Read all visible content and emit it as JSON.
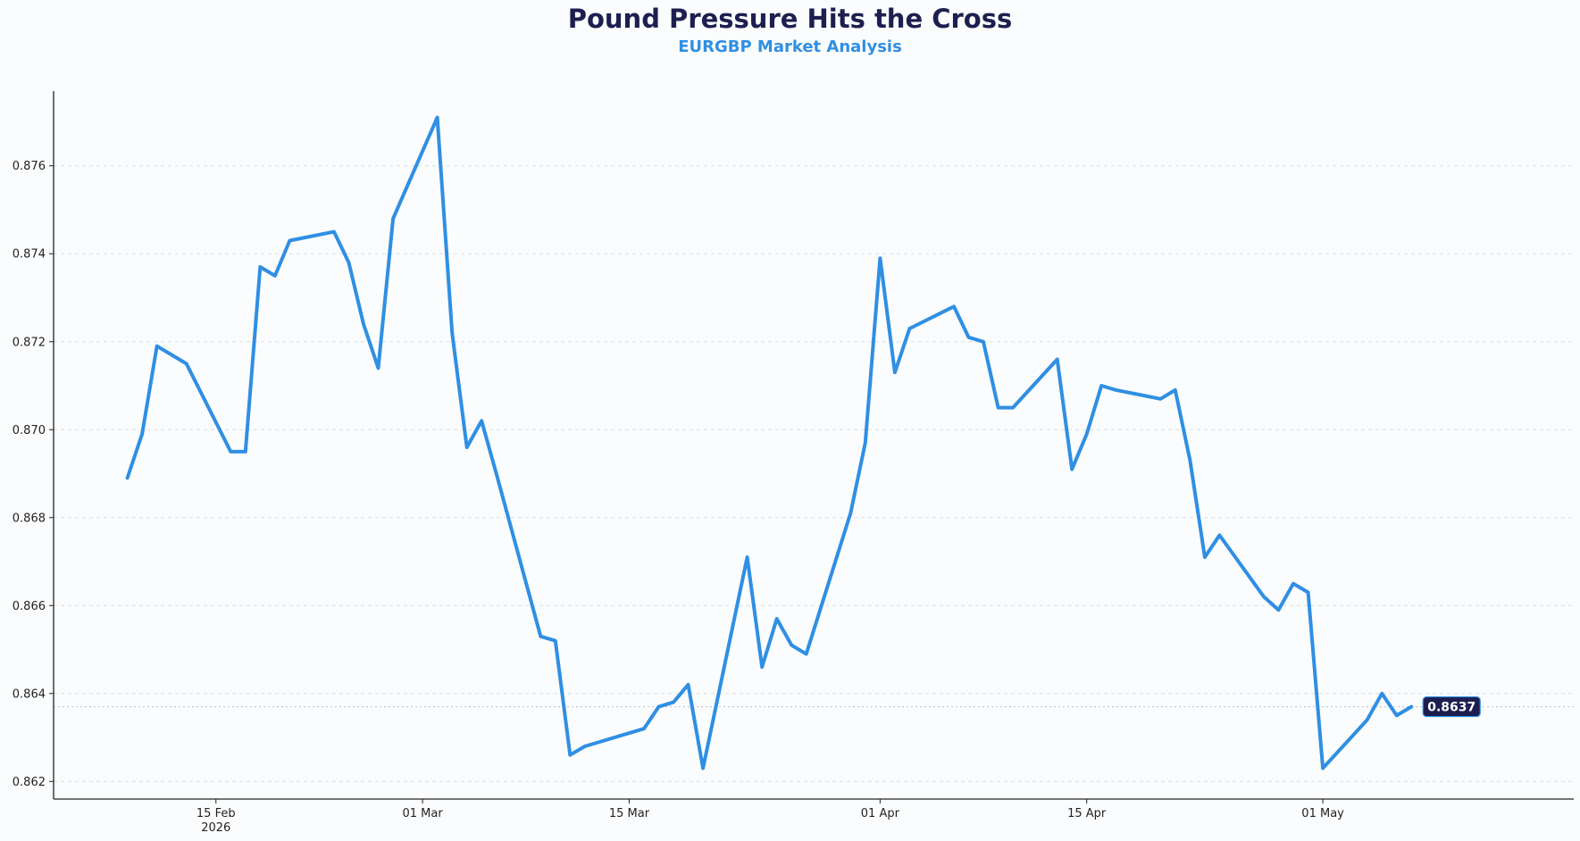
{
  "chart_data": {
    "type": "line",
    "title": "Pound Pressure Hits the Cross",
    "subtitle": "EURGBP Market Analysis",
    "xlabel": "",
    "ylabel": "",
    "ylim": [
      0.8616,
      0.8777
    ],
    "xlim": [
      "2026-02-04",
      "2026-05-18"
    ],
    "grid": "horizontal-dashed",
    "legend": "none",
    "line_color": "#2f8fe3",
    "y_ticks": [
      "0.862",
      "0.864",
      "0.866",
      "0.868",
      "0.870",
      "0.872",
      "0.874",
      "0.876"
    ],
    "x_ticks": [
      {
        "date": "2026-02-15",
        "label": "15 Feb",
        "sublabel": "2026"
      },
      {
        "date": "2026-03-01",
        "label": "01 Mar",
        "sublabel": ""
      },
      {
        "date": "2026-03-15",
        "label": "15 Mar",
        "sublabel": ""
      },
      {
        "date": "2026-04-01",
        "label": "01 Apr",
        "sublabel": ""
      },
      {
        "date": "2026-04-15",
        "label": "15 Apr",
        "sublabel": ""
      },
      {
        "date": "2026-05-01",
        "label": "01 May",
        "sublabel": ""
      }
    ],
    "last_value_label": "0.8637",
    "last_value": 0.8637,
    "series": [
      {
        "x": [
          "2026-02-09",
          "2026-02-10",
          "2026-02-11",
          "2026-02-12",
          "2026-02-13",
          "2026-02-16",
          "2026-02-17",
          "2026-02-18",
          "2026-02-19",
          "2026-02-20",
          "2026-02-23",
          "2026-02-24",
          "2026-02-25",
          "2026-02-26",
          "2026-02-27",
          "2026-03-02",
          "2026-03-03",
          "2026-03-04",
          "2026-03-05",
          "2026-03-06",
          "2026-03-09",
          "2026-03-10",
          "2026-03-11",
          "2026-03-12",
          "2026-03-13",
          "2026-03-16",
          "2026-03-17",
          "2026-03-18",
          "2026-03-19",
          "2026-03-20",
          "2026-03-23",
          "2026-03-24",
          "2026-03-25",
          "2026-03-26",
          "2026-03-27",
          "2026-03-30",
          "2026-03-31",
          "2026-04-01",
          "2026-04-02",
          "2026-04-03",
          "2026-04-06",
          "2026-04-07",
          "2026-04-08",
          "2026-04-09",
          "2026-04-10",
          "2026-04-13",
          "2026-04-14",
          "2026-04-15",
          "2026-04-16",
          "2026-04-17",
          "2026-04-20",
          "2026-04-21",
          "2026-04-22",
          "2026-04-23",
          "2026-04-24",
          "2026-04-27",
          "2026-04-28",
          "2026-04-29",
          "2026-04-30",
          "2026-05-01",
          "2026-05-04",
          "2026-05-05",
          "2026-05-06",
          "2026-05-07"
        ],
        "values": [
          0.8689,
          0.8699,
          0.8719,
          0.8717,
          0.8715,
          0.8695,
          0.8695,
          0.8737,
          0.8735,
          0.8743,
          0.8745,
          0.8738,
          0.8724,
          0.8714,
          0.8748,
          0.8771,
          0.8722,
          0.8696,
          0.8702,
          0.869,
          0.8653,
          0.8652,
          0.8626,
          0.8628,
          0.8629,
          0.8632,
          0.8637,
          0.8638,
          0.8642,
          0.8623,
          0.8671,
          0.8646,
          0.8657,
          0.8651,
          0.8649,
          0.8681,
          0.8697,
          0.8739,
          0.8713,
          0.8723,
          0.8728,
          0.8721,
          0.872,
          0.8705,
          0.8705,
          0.8716,
          0.8691,
          0.8699,
          0.871,
          0.8709,
          0.8707,
          0.8709,
          0.8693,
          0.8671,
          0.8676,
          0.8662,
          0.8659,
          0.8665,
          0.8663,
          0.8623,
          0.8634,
          0.864,
          0.8635,
          0.8637
        ]
      }
    ]
  }
}
